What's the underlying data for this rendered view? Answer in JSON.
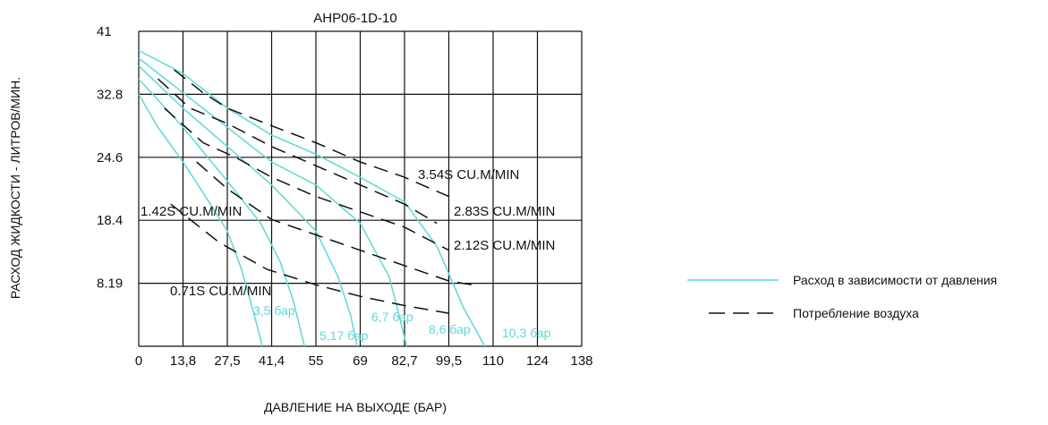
{
  "chart_data": {
    "type": "line",
    "title": "AHP06-1D-10",
    "xlabel": "ДАВЛЕНИЕ НА ВЫХОДЕ (БАР)",
    "ylabel": "РАСХОД ЖИДКОСТИ - ЛИТРОВ/МИН.",
    "x_ticks": [
      "0",
      "13,8",
      "27,5",
      "41,4",
      "55",
      "69",
      "82,7",
      "99,5",
      "110",
      "124",
      "138"
    ],
    "y_ticks": [
      "41",
      "32.8",
      "24.6",
      "18.4",
      "8.19"
    ],
    "grid": true,
    "flow_color": "#5fd8d8",
    "air_color": "#111111",
    "flow_series": [
      {
        "name": "3,5 бар",
        "points": [
          [
            0,
            32.8
          ],
          [
            6,
            28.5
          ],
          [
            13.8,
            24.0
          ],
          [
            20,
            20.0
          ],
          [
            27.5,
            15.0
          ],
          [
            32,
            10.0
          ],
          [
            36,
            4.0
          ],
          [
            38.5,
            0
          ]
        ]
      },
      {
        "name": "5,17 бар",
        "points": [
          [
            0,
            34.8
          ],
          [
            13.8,
            28.5
          ],
          [
            27.5,
            21.5
          ],
          [
            38,
            16.0
          ],
          [
            44,
            11.0
          ],
          [
            48,
            6.0
          ],
          [
            51.5,
            0
          ]
        ]
      },
      {
        "name": "6,7 бар",
        "points": [
          [
            0,
            36.5
          ],
          [
            13.8,
            31.0
          ],
          [
            27.5,
            26.0
          ],
          [
            41.4,
            21.0
          ],
          [
            55,
            15.0
          ],
          [
            62,
            9.0
          ],
          [
            66,
            4.0
          ],
          [
            68,
            0
          ]
        ]
      },
      {
        "name": "8,6 бар",
        "points": [
          [
            0,
            37.5
          ],
          [
            13.8,
            33.0
          ],
          [
            27.5,
            28.5
          ],
          [
            41.4,
            24.0
          ],
          [
            55,
            21.0
          ],
          [
            69,
            16.0
          ],
          [
            78,
            9.0
          ],
          [
            81,
            4.0
          ],
          [
            83.5,
            0
          ]
        ]
      },
      {
        "name": "10,3 бар",
        "points": [
          [
            0,
            38.5
          ],
          [
            13.8,
            35.5
          ],
          [
            27.5,
            31.0
          ],
          [
            41.4,
            27.5
          ],
          [
            55,
            25.0
          ],
          [
            69,
            22.0
          ],
          [
            82.7,
            18.8
          ],
          [
            95,
            13.0
          ],
          [
            103,
            5.0
          ],
          [
            108,
            0
          ]
        ]
      }
    ],
    "air_series": [
      {
        "name": "0.71S CU.M/MIN",
        "points": [
          [
            10,
            18.5
          ],
          [
            25,
            13.5
          ],
          [
            40,
            10.0
          ],
          [
            55,
            8.0
          ],
          [
            69,
            6.5
          ],
          [
            82.7,
            5.3
          ],
          [
            99.5,
            4.3
          ]
        ]
      },
      {
        "name": "1.42S CU.M/MIN",
        "points": [
          [
            18,
            24.0
          ],
          [
            27.5,
            20.5
          ],
          [
            41.4,
            16.5
          ],
          [
            55,
            14.5
          ],
          [
            69,
            12.5
          ],
          [
            82.7,
            10.5
          ],
          [
            99.5,
            8.5
          ],
          [
            105,
            8.0
          ]
        ]
      },
      {
        "name": "2.12S CU.M/MIN",
        "points": [
          [
            8,
            31.0
          ],
          [
            20,
            26.5
          ],
          [
            30,
            24.6
          ],
          [
            41.4,
            22.0
          ],
          [
            55,
            19.5
          ],
          [
            69,
            17.5
          ],
          [
            82.7,
            15.5
          ],
          [
            99.5,
            12.5
          ]
        ]
      },
      {
        "name": "2.83S CU.M/MIN",
        "points": [
          [
            6,
            34.8
          ],
          [
            16,
            31.0
          ],
          [
            27.5,
            29.0
          ],
          [
            41.4,
            26.0
          ],
          [
            55,
            23.5
          ],
          [
            69,
            21.0
          ],
          [
            82.7,
            18.5
          ],
          [
            95,
            16.0
          ]
        ]
      },
      {
        "name": "3.54S CU.M/MIN",
        "points": [
          [
            11,
            36.0
          ],
          [
            20,
            33.0
          ],
          [
            27.5,
            31.0
          ],
          [
            41.4,
            28.7
          ],
          [
            55,
            26.5
          ],
          [
            69,
            24.0
          ],
          [
            82.7,
            22.0
          ],
          [
            99.5,
            19.5
          ]
        ]
      }
    ],
    "air_labels": [
      "0.71S CU.M/MIN",
      "1.42S CU.M/MIN",
      "2.12S CU.M/MIN",
      "2.83S CU.M/MIN",
      "3.54S CU.M/MIN"
    ],
    "pressure_labels": [
      "3,5 бар",
      "5,17 бар",
      "6,7 бар",
      "8,6 бар",
      "10,3 бар"
    ],
    "legend": {
      "flow_label": "Расход в зависимости от давления",
      "air_label": "Потребление воздуха",
      "placement": "right"
    }
  }
}
